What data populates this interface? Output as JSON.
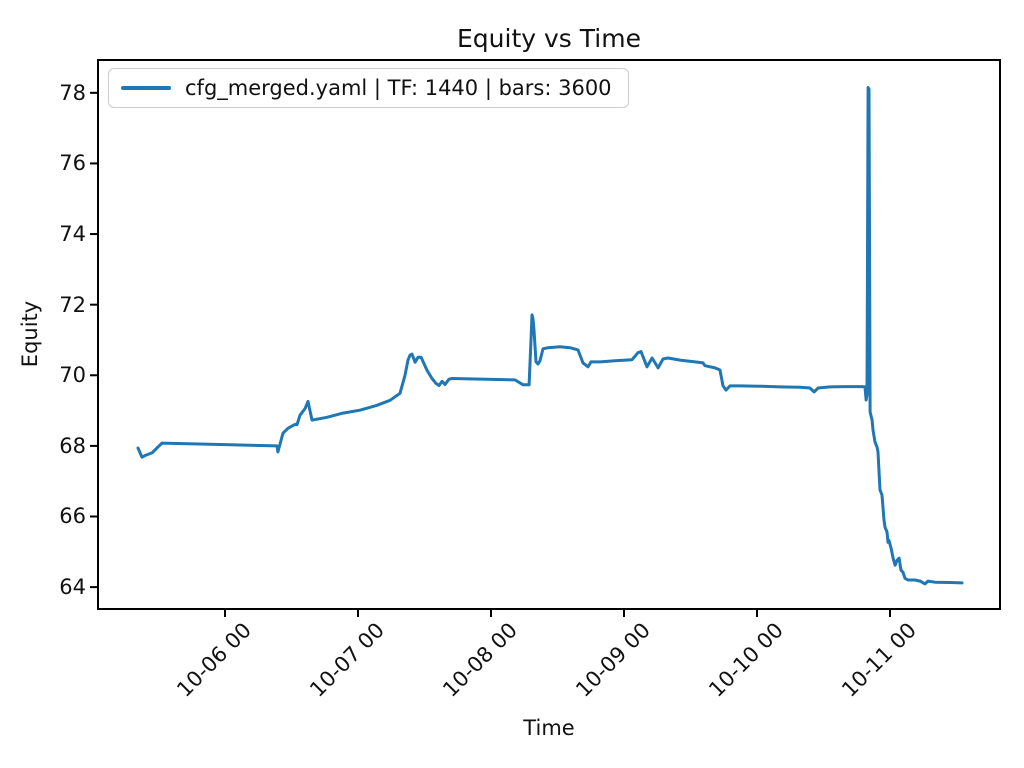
{
  "figure": {
    "title": "Equity vs Time",
    "xlabel": "Time",
    "ylabel": "Equity"
  },
  "legend": {
    "label": "cfg_merged.yaml | TF: 1440 | bars: 3600",
    "position": "upper left",
    "line_color": "#1f77b4"
  },
  "chart_data": {
    "type": "line",
    "title": "Equity vs Time",
    "xlabel": "Time",
    "ylabel": "Equity",
    "grid": false,
    "legend_position": "upper left",
    "x_unit": "days; x=1 corresponds to tick '10-06 00', x=6 to tick '10-11 00'",
    "xlim": [
      0.045,
      6.827
    ],
    "ylim": [
      63.38,
      78.93
    ],
    "y_ticks": [
      64,
      66,
      68,
      70,
      72,
      74,
      76,
      78
    ],
    "x_ticks": [
      {
        "value": 1,
        "label": "10-06 00"
      },
      {
        "value": 2,
        "label": "10-07 00"
      },
      {
        "value": 3,
        "label": "10-08 00"
      },
      {
        "value": 4,
        "label": "10-09 00"
      },
      {
        "value": 5,
        "label": "10-10 00"
      },
      {
        "value": 6,
        "label": "10-11 00"
      }
    ],
    "series": [
      {
        "name": "cfg_merged.yaml | TF: 1440 | bars: 3600",
        "color": "#1f77b4",
        "line_width": 3,
        "points": [
          [
            0.346,
            67.94
          ],
          [
            0.376,
            67.68
          ],
          [
            0.406,
            67.74
          ],
          [
            0.451,
            67.8
          ],
          [
            0.496,
            67.97
          ],
          [
            0.526,
            68.08
          ],
          [
            0.962,
            68.04
          ],
          [
            1.391,
            68.0
          ],
          [
            1.398,
            67.83
          ],
          [
            1.436,
            68.36
          ],
          [
            1.474,
            68.5
          ],
          [
            1.504,
            68.56
          ],
          [
            1.526,
            68.61
          ],
          [
            1.541,
            68.6
          ],
          [
            1.564,
            68.87
          ],
          [
            1.602,
            69.06
          ],
          [
            1.624,
            69.26
          ],
          [
            1.654,
            68.73
          ],
          [
            1.767,
            68.81
          ],
          [
            1.887,
            68.93
          ],
          [
            2.015,
            69.01
          ],
          [
            2.143,
            69.15
          ],
          [
            2.241,
            69.29
          ],
          [
            2.316,
            69.49
          ],
          [
            2.353,
            70.0
          ],
          [
            2.376,
            70.43
          ],
          [
            2.391,
            70.57
          ],
          [
            2.406,
            70.6
          ],
          [
            2.429,
            70.37
          ],
          [
            2.451,
            70.51
          ],
          [
            2.474,
            70.51
          ],
          [
            2.519,
            70.14
          ],
          [
            2.556,
            69.91
          ],
          [
            2.586,
            69.77
          ],
          [
            2.609,
            69.71
          ],
          [
            2.632,
            69.83
          ],
          [
            2.654,
            69.74
          ],
          [
            2.684,
            69.89
          ],
          [
            2.707,
            69.91
          ],
          [
            3.18,
            69.87
          ],
          [
            3.241,
            69.73
          ],
          [
            3.286,
            69.73
          ],
          [
            3.301,
            71.0
          ],
          [
            3.308,
            71.71
          ],
          [
            3.316,
            71.6
          ],
          [
            3.323,
            71.28
          ],
          [
            3.338,
            70.38
          ],
          [
            3.353,
            70.32
          ],
          [
            3.368,
            70.41
          ],
          [
            3.391,
            70.75
          ],
          [
            3.429,
            70.78
          ],
          [
            3.519,
            70.81
          ],
          [
            3.594,
            70.78
          ],
          [
            3.654,
            70.72
          ],
          [
            3.692,
            70.35
          ],
          [
            3.729,
            70.24
          ],
          [
            3.752,
            70.38
          ],
          [
            3.82,
            70.38
          ],
          [
            3.932,
            70.41
          ],
          [
            4.06,
            70.44
          ],
          [
            4.105,
            70.64
          ],
          [
            4.128,
            70.67
          ],
          [
            4.173,
            70.24
          ],
          [
            4.211,
            70.49
          ],
          [
            4.256,
            70.21
          ],
          [
            4.293,
            70.46
          ],
          [
            4.331,
            70.49
          ],
          [
            4.421,
            70.43
          ],
          [
            4.534,
            70.38
          ],
          [
            4.594,
            70.35
          ],
          [
            4.609,
            70.27
          ],
          [
            4.684,
            70.21
          ],
          [
            4.722,
            70.15
          ],
          [
            4.744,
            69.7
          ],
          [
            4.767,
            69.58
          ],
          [
            4.797,
            69.7
          ],
          [
            4.872,
            69.7
          ],
          [
            5.023,
            69.69
          ],
          [
            5.173,
            69.67
          ],
          [
            5.323,
            69.66
          ],
          [
            5.398,
            69.64
          ],
          [
            5.429,
            69.53
          ],
          [
            5.459,
            69.64
          ],
          [
            5.549,
            69.67
          ],
          [
            5.662,
            69.68
          ],
          [
            5.789,
            69.68
          ],
          [
            5.812,
            69.67
          ],
          [
            5.82,
            69.3
          ],
          [
            5.827,
            69.44
          ],
          [
            5.835,
            78.15
          ],
          [
            5.842,
            78.1
          ],
          [
            5.85,
            68.96
          ],
          [
            5.865,
            68.73
          ],
          [
            5.872,
            68.45
          ],
          [
            5.887,
            68.11
          ],
          [
            5.902,
            67.97
          ],
          [
            5.91,
            67.83
          ],
          [
            5.925,
            66.75
          ],
          [
            5.94,
            66.61
          ],
          [
            5.955,
            65.9
          ],
          [
            5.962,
            65.7
          ],
          [
            5.977,
            65.56
          ],
          [
            5.985,
            65.27
          ],
          [
            5.992,
            65.33
          ],
          [
            6.008,
            65.1
          ],
          [
            6.023,
            64.82
          ],
          [
            6.038,
            64.62
          ],
          [
            6.053,
            64.76
          ],
          [
            6.068,
            64.82
          ],
          [
            6.083,
            64.48
          ],
          [
            6.098,
            64.42
          ],
          [
            6.113,
            64.25
          ],
          [
            6.135,
            64.2
          ],
          [
            6.188,
            64.2
          ],
          [
            6.226,
            64.17
          ],
          [
            6.263,
            64.09
          ],
          [
            6.286,
            64.17
          ],
          [
            6.338,
            64.14
          ],
          [
            6.451,
            64.13
          ],
          [
            6.541,
            64.12
          ]
        ]
      }
    ]
  },
  "layout_colors": {
    "spine": "#000000",
    "tick": "#000000",
    "legend_border": "#cccccc"
  }
}
